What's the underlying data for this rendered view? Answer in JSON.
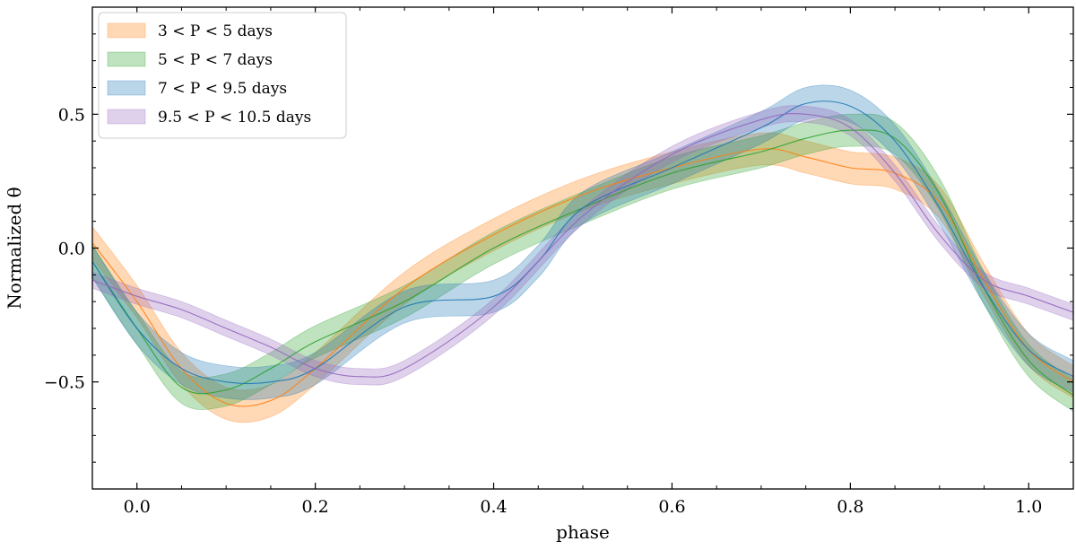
{
  "chart_data": {
    "type": "line",
    "xlabel": "phase",
    "ylabel": "Normalized θ",
    "xlim": [
      -0.05,
      1.05
    ],
    "ylim": [
      -0.9,
      0.9
    ],
    "x_ticks": [
      0.0,
      0.2,
      0.4,
      0.6,
      0.8,
      1.0
    ],
    "x_tick_labels": [
      "0.0",
      "0.2",
      "0.4",
      "0.6",
      "0.8",
      "1.0"
    ],
    "y_ticks": [
      -0.5,
      0.0,
      0.5
    ],
    "y_tick_labels": [
      "−0.5",
      "0.0",
      "0.5"
    ],
    "grid": false,
    "legend_position": "top-left",
    "series": [
      {
        "name": "3 < P < 5 days",
        "color": "#ff7f0e",
        "x": [
          -0.05,
          0.0,
          0.05,
          0.1,
          0.15,
          0.2,
          0.3,
          0.4,
          0.5,
          0.6,
          0.7,
          0.75,
          0.8,
          0.85,
          0.9,
          0.95,
          1.0,
          1.05
        ],
        "y": [
          0.02,
          -0.2,
          -0.45,
          -0.58,
          -0.57,
          -0.45,
          -0.15,
          0.05,
          0.2,
          0.3,
          0.37,
          0.34,
          0.3,
          0.28,
          0.17,
          -0.12,
          -0.38,
          -0.5
        ],
        "band_halfwidth": 0.06
      },
      {
        "name": "5 < P < 7 days",
        "color": "#2ca02c",
        "x": [
          -0.05,
          0.0,
          0.05,
          0.1,
          0.15,
          0.2,
          0.3,
          0.4,
          0.5,
          0.6,
          0.7,
          0.75,
          0.8,
          0.85,
          0.9,
          0.95,
          1.0,
          1.05
        ],
        "y": [
          -0.05,
          -0.3,
          -0.52,
          -0.53,
          -0.45,
          -0.35,
          -0.2,
          0.0,
          0.15,
          0.28,
          0.36,
          0.41,
          0.44,
          0.41,
          0.2,
          -0.15,
          -0.42,
          -0.55
        ],
        "band_halfwidth": 0.06
      },
      {
        "name": "7 < P < 9.5 days",
        "color": "#1f77b4",
        "x": [
          -0.05,
          0.0,
          0.05,
          0.1,
          0.15,
          0.2,
          0.3,
          0.4,
          0.45,
          0.5,
          0.6,
          0.7,
          0.75,
          0.8,
          0.85,
          0.9,
          0.95,
          1.0,
          1.05
        ],
        "y": [
          -0.05,
          -0.3,
          -0.45,
          -0.5,
          -0.5,
          -0.45,
          -0.22,
          -0.18,
          -0.05,
          0.15,
          0.3,
          0.45,
          0.54,
          0.53,
          0.4,
          0.15,
          -0.15,
          -0.38,
          -0.48
        ],
        "band_halfwidth": 0.06
      },
      {
        "name": "9.5 < P < 10.5 days",
        "color": "#9467bd",
        "x": [
          -0.05,
          0.0,
          0.05,
          0.1,
          0.15,
          0.2,
          0.25,
          0.3,
          0.4,
          0.5,
          0.6,
          0.7,
          0.75,
          0.8,
          0.85,
          0.9,
          0.95,
          1.0,
          1.05
        ],
        "y": [
          -0.12,
          -0.18,
          -0.23,
          -0.3,
          -0.37,
          -0.45,
          -0.48,
          -0.45,
          -0.22,
          0.12,
          0.35,
          0.48,
          0.5,
          0.45,
          0.28,
          0.05,
          -0.12,
          -0.18,
          -0.24
        ],
        "band_halfwidth": 0.03
      }
    ]
  }
}
